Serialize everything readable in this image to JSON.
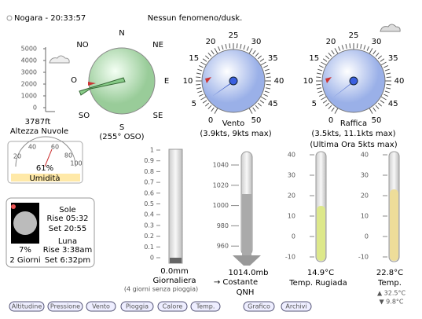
{
  "header": {
    "station": "Nogara - 20:33:57",
    "conditions": "Nessun fenomeno/dusk."
  },
  "cloud": {
    "ticks": [
      5000,
      4000,
      3000,
      2000,
      1000,
      0
    ],
    "value": "3787ft",
    "label": "Altezza Nuvole"
  },
  "compass": {
    "points": [
      "N",
      "NE",
      "E",
      "SE",
      "S",
      "SO",
      "O",
      "NO"
    ],
    "reading": "(255° OSO)"
  },
  "wind": {
    "ticks": [
      0,
      5,
      10,
      15,
      20,
      25,
      30,
      35,
      40,
      45,
      50
    ],
    "label": "Vento",
    "reading": "(3.9kts, 9kts max)"
  },
  "gust": {
    "ticks": [
      0,
      5,
      10,
      15,
      20,
      25,
      30,
      35,
      40,
      45,
      50
    ],
    "label": "Raffica",
    "reading": "(3.5kts, 11.1kts max)",
    "last_hour": "(Ultima Ora 5kts max)"
  },
  "humidity": {
    "ticks": [
      20,
      40,
      60,
      80,
      100
    ],
    "value": "61%",
    "label": "Umidità"
  },
  "astro": {
    "sun": "Sole",
    "sunrise": "Rise 05:32",
    "sunset": "Set 20:55",
    "moon": "Luna",
    "moonrise": "Rise 3:38am",
    "moonset": "Set 6:32pm",
    "illumination": "7%",
    "age": "2 Giorni"
  },
  "rain": {
    "ticks": [
      1,
      0.9,
      0.8,
      0.7,
      0.6,
      0.5,
      0.4,
      0.3,
      0.2,
      0.1,
      0
    ],
    "value": "0.0mm",
    "label": "Giornaliera",
    "note": "(4 giorni senza pioggia)"
  },
  "pressure": {
    "ticks": [
      1040,
      1020,
      1000,
      980,
      960
    ],
    "value": "1014.0mb",
    "trend": "→ Costante",
    "label": "QNH"
  },
  "dew": {
    "ticks": [
      40,
      30,
      20,
      10,
      0,
      -10
    ],
    "value": "14.9°C",
    "label": "Temp. Rugiada"
  },
  "temp": {
    "ticks": [
      40,
      30,
      20,
      10,
      0,
      -10
    ],
    "value": "22.8°C",
    "label": "Temp.",
    "max": "▲ 32.5°C",
    "min": "▼ 9.8°C"
  },
  "buttons": [
    "Altitudine",
    "Pressione",
    "Vento",
    "Pioggia",
    "Calore",
    "Temp.",
    "Grafico",
    "Archivi"
  ]
}
